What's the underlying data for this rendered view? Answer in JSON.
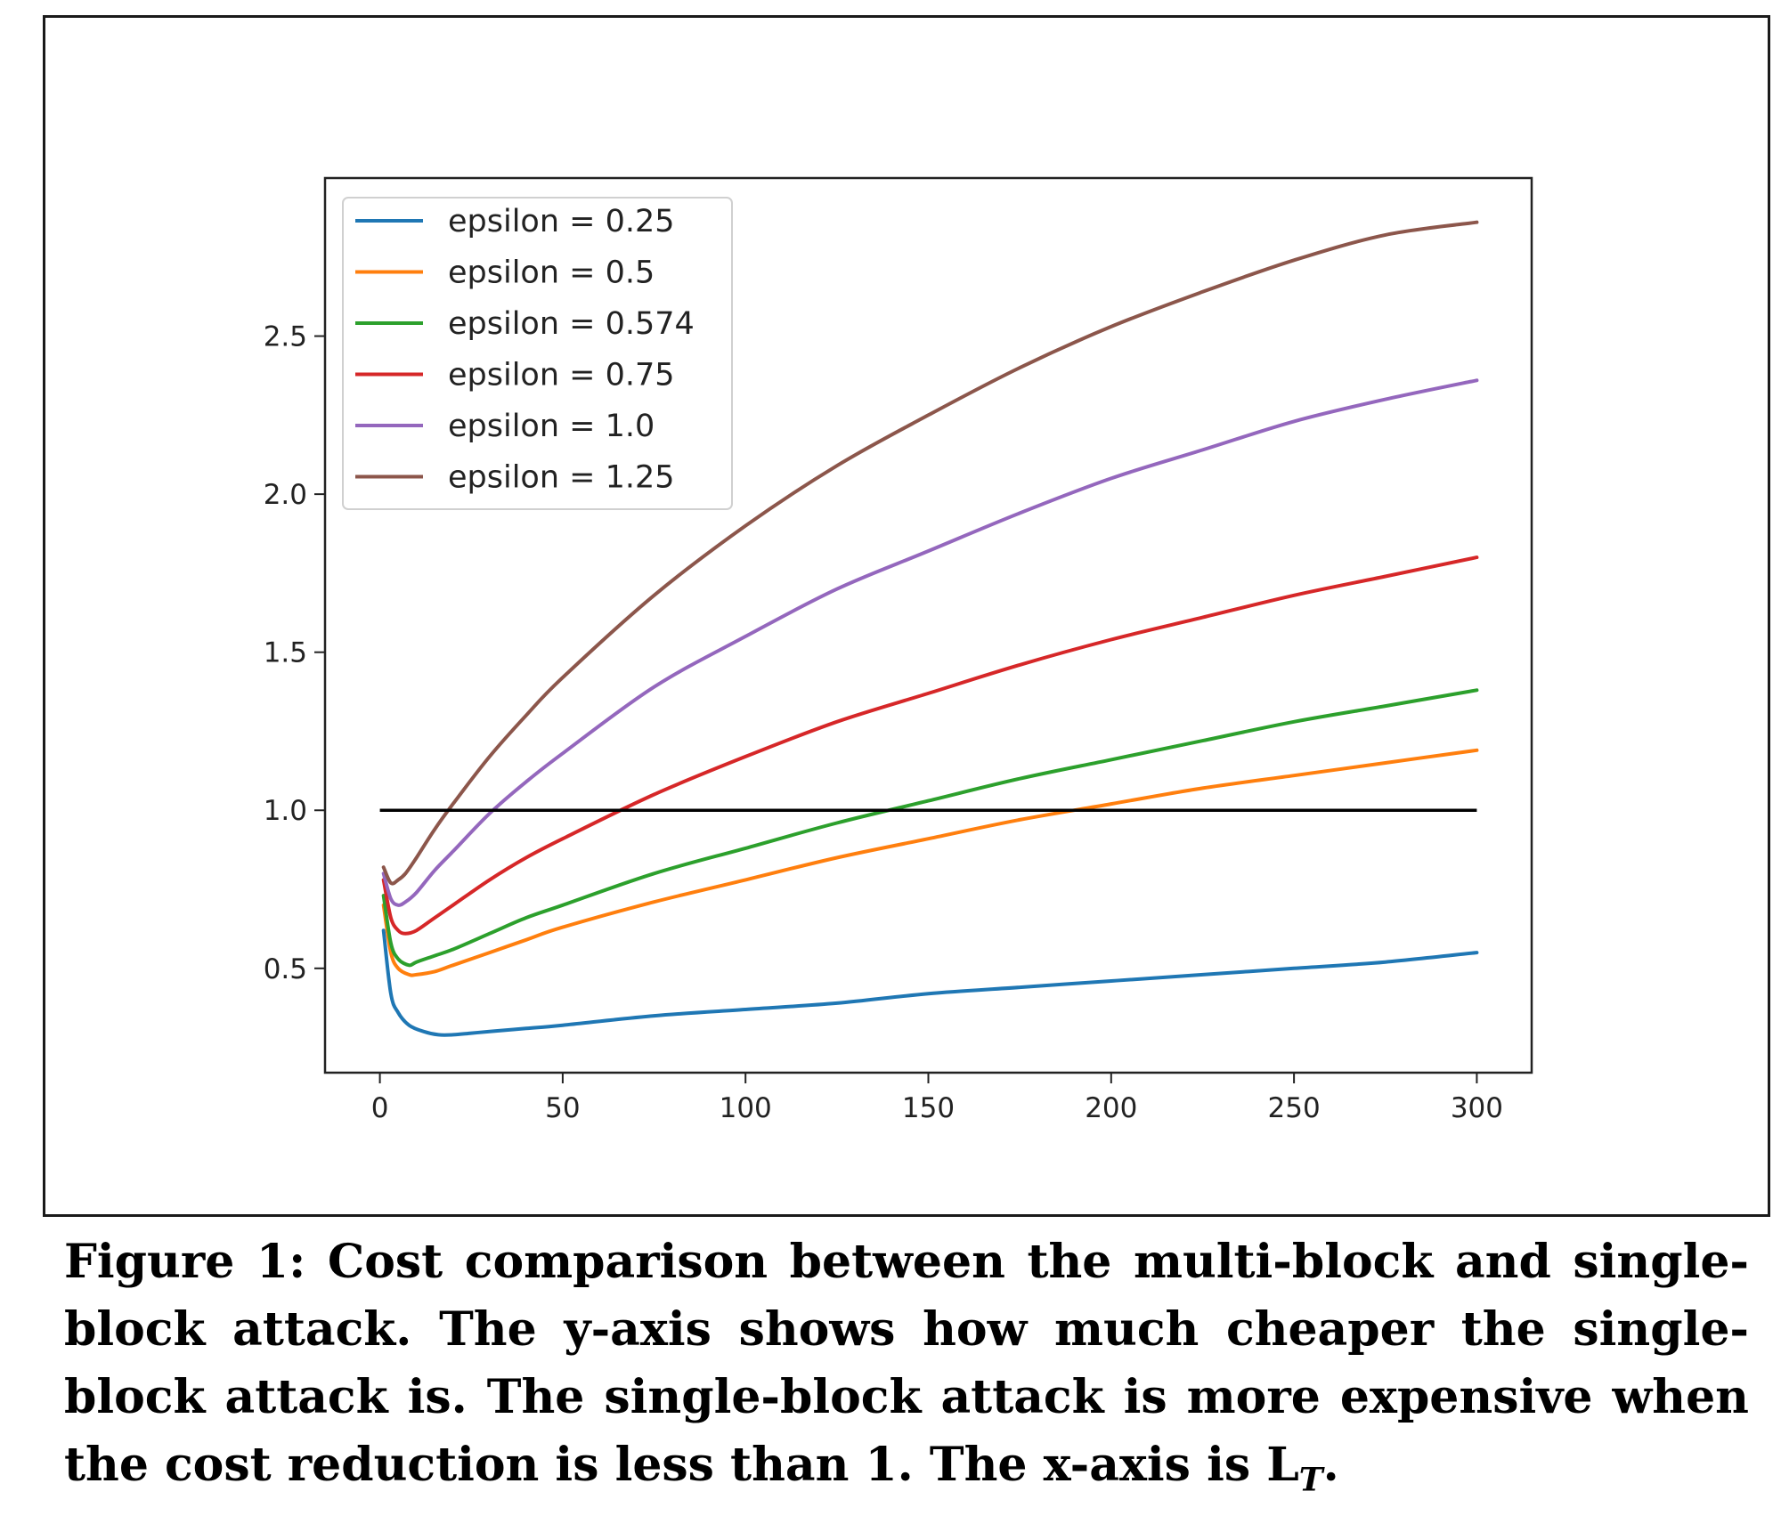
{
  "chart_data": {
    "type": "line",
    "title": "",
    "xlabel": "",
    "ylabel": "",
    "xlim": [
      -15,
      315
    ],
    "ylim": [
      0.17,
      3.0
    ],
    "xticks": [
      0,
      50,
      100,
      150,
      200,
      250,
      300
    ],
    "xtick_labels": [
      "0",
      "50",
      "100",
      "150",
      "200",
      "250",
      "300"
    ],
    "yticks": [
      0.5,
      1.0,
      1.5,
      2.0,
      2.5
    ],
    "ytick_labels": [
      "0.5",
      "1.0",
      "1.5",
      "2.0",
      "2.5"
    ],
    "grid": false,
    "legend_position": "upper-left",
    "reference_line": {
      "y": 1.0,
      "x_range": [
        0,
        300
      ],
      "color": "#000000"
    },
    "series": [
      {
        "name": "epsilon = 0.25",
        "color": "#1f77b4",
        "x": [
          1,
          3,
          5,
          8,
          12,
          16,
          20,
          25,
          30,
          40,
          50,
          75,
          100,
          125,
          150,
          175,
          200,
          225,
          250,
          275,
          300
        ],
        "y": [
          0.62,
          0.42,
          0.36,
          0.32,
          0.3,
          0.29,
          0.29,
          0.295,
          0.3,
          0.31,
          0.32,
          0.35,
          0.37,
          0.39,
          0.42,
          0.44,
          0.46,
          0.48,
          0.5,
          0.52,
          0.55
        ]
      },
      {
        "name": "epsilon = 0.5",
        "color": "#ff7f0e",
        "x": [
          1,
          3,
          5,
          8,
          10,
          15,
          20,
          30,
          40,
          50,
          75,
          100,
          125,
          150,
          175,
          200,
          225,
          250,
          275,
          300
        ],
        "y": [
          0.7,
          0.55,
          0.5,
          0.48,
          0.48,
          0.49,
          0.51,
          0.55,
          0.59,
          0.63,
          0.71,
          0.78,
          0.85,
          0.91,
          0.97,
          1.02,
          1.07,
          1.11,
          1.15,
          1.19
        ]
      },
      {
        "name": "epsilon = 0.574",
        "color": "#2ca02c",
        "x": [
          1,
          3,
          5,
          8,
          10,
          15,
          20,
          30,
          40,
          50,
          75,
          100,
          125,
          150,
          175,
          200,
          225,
          250,
          275,
          300
        ],
        "y": [
          0.73,
          0.58,
          0.53,
          0.51,
          0.52,
          0.54,
          0.56,
          0.61,
          0.66,
          0.7,
          0.8,
          0.88,
          0.96,
          1.03,
          1.1,
          1.16,
          1.22,
          1.28,
          1.33,
          1.38
        ]
      },
      {
        "name": "epsilon = 0.75",
        "color": "#d62728",
        "x": [
          1,
          3,
          5,
          7,
          10,
          15,
          20,
          30,
          40,
          50,
          75,
          100,
          125,
          150,
          175,
          200,
          225,
          250,
          275,
          300
        ],
        "y": [
          0.78,
          0.66,
          0.62,
          0.61,
          0.62,
          0.66,
          0.7,
          0.78,
          0.85,
          0.91,
          1.05,
          1.17,
          1.28,
          1.37,
          1.46,
          1.54,
          1.61,
          1.68,
          1.74,
          1.8
        ]
      },
      {
        "name": "epsilon = 1.0",
        "color": "#9467bd",
        "x": [
          1,
          3,
          5,
          7,
          10,
          15,
          20,
          30,
          40,
          50,
          75,
          100,
          125,
          150,
          175,
          200,
          225,
          250,
          275,
          300
        ],
        "y": [
          0.8,
          0.72,
          0.7,
          0.71,
          0.74,
          0.81,
          0.87,
          0.99,
          1.09,
          1.18,
          1.39,
          1.55,
          1.7,
          1.82,
          1.94,
          2.05,
          2.14,
          2.23,
          2.3,
          2.36
        ]
      },
      {
        "name": "epsilon = 1.25",
        "color": "#8c564b",
        "x": [
          1,
          3,
          5,
          7,
          10,
          15,
          20,
          30,
          40,
          50,
          75,
          100,
          125,
          150,
          175,
          200,
          225,
          250,
          275,
          300
        ],
        "y": [
          0.82,
          0.77,
          0.78,
          0.8,
          0.85,
          0.94,
          1.02,
          1.17,
          1.3,
          1.42,
          1.68,
          1.9,
          2.09,
          2.25,
          2.4,
          2.53,
          2.64,
          2.74,
          2.82,
          2.86
        ]
      }
    ]
  },
  "caption": {
    "line1": "Figure 1: Cost comparison between the multi-block and single-",
    "line2": "block attack. The y-axis shows how much cheaper the single-",
    "line3": "block attack is. The single-block attack is more expensive when",
    "line4_prefix": "the cost reduction is less than 1. The x-axis is L",
    "line4_sub": "T",
    "line4_suffix": "."
  }
}
